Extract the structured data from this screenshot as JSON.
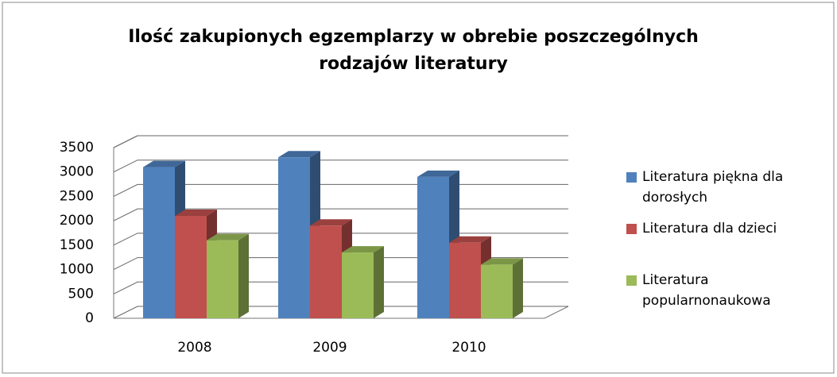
{
  "chart_data": {
    "type": "bar3d",
    "title": "Ilość zakupionych egzemplarzy w obrebie poszczególnych rodzajów literatury",
    "categories": [
      "2008",
      "2009",
      "2010"
    ],
    "series": [
      {
        "name": "Literatura piękna dla dorosłych",
        "color": "#4f81bd",
        "values": [
          3100,
          3300,
          2900
        ]
      },
      {
        "name": "Literatura dla dzieci",
        "color": "#c0504d",
        "values": [
          2100,
          1900,
          1550
        ]
      },
      {
        "name": "Literatura popularnonaukowa",
        "color": "#9bbb59",
        "values": [
          1600,
          1350,
          1100
        ]
      }
    ],
    "ylim": [
      0,
      3500
    ],
    "yticks": [
      0,
      500,
      1000,
      1500,
      2000,
      2500,
      3000,
      3500
    ],
    "grid": true
  }
}
